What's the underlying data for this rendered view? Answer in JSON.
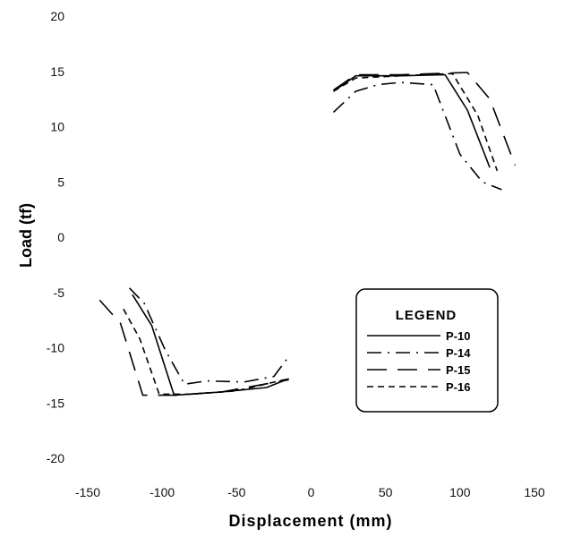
{
  "chart_data": {
    "type": "line",
    "title": "",
    "xlabel": "Displacement (mm)",
    "ylabel": "Load (tf)",
    "xlim": [
      -150,
      150
    ],
    "ylim": [
      -20,
      20
    ],
    "x_ticks": [
      "-150",
      "-100",
      "-50",
      "0",
      "50",
      "100",
      "150"
    ],
    "y_ticks": [
      "20",
      "15",
      "10",
      "5",
      "0",
      "-5",
      "-10",
      "-15",
      "-20"
    ],
    "grid": false,
    "legend": {
      "title": "LEGEND",
      "position": "right-center",
      "entries": [
        "P-10",
        "P-14",
        "P-15",
        "P-16"
      ]
    },
    "series": [
      {
        "name": "P-10",
        "style": "solid",
        "segments": [
          [
            [
              15,
              13.2
            ],
            [
              30,
              14.6
            ],
            [
              60,
              14.6
            ],
            [
              90,
              14.7
            ],
            [
              105,
              11.5
            ],
            [
              120,
              6.3
            ]
          ],
          [
            [
              -120,
              -5.2
            ],
            [
              -107,
              -8.0
            ],
            [
              -92,
              -14.3
            ],
            [
              -60,
              -14.0
            ],
            [
              -30,
              -13.6
            ],
            [
              -15,
              -12.8
            ]
          ]
        ]
      },
      {
        "name": "P-14",
        "style": "dashdot",
        "segments": [
          [
            [
              15,
              11.3
            ],
            [
              30,
              13.2
            ],
            [
              45,
              13.8
            ],
            [
              60,
              14.0
            ],
            [
              82,
              13.8
            ],
            [
              100,
              7.5
            ],
            [
              115,
              5.0
            ],
            [
              128,
              4.3
            ]
          ],
          [
            [
              -122,
              -4.6
            ],
            [
              -112,
              -6.0
            ],
            [
              -98,
              -10.2
            ],
            [
              -85,
              -13.3
            ],
            [
              -70,
              -13.0
            ],
            [
              -45,
              -13.1
            ],
            [
              -25,
              -12.6
            ],
            [
              -15,
              -10.8
            ]
          ]
        ]
      },
      {
        "name": "P-15",
        "style": "longdash",
        "segments": [
          [
            [
              15,
              13.3
            ],
            [
              30,
              14.7
            ],
            [
              60,
              14.7
            ],
            [
              105,
              14.9
            ],
            [
              120,
              12.5
            ],
            [
              137,
              6.5
            ]
          ],
          [
            [
              -142,
              -5.7
            ],
            [
              -128,
              -7.8
            ],
            [
              -113,
              -14.3
            ],
            [
              -92,
              -14.3
            ],
            [
              -60,
              -14.0
            ],
            [
              -15,
              -12.9
            ]
          ]
        ]
      },
      {
        "name": "P-16",
        "style": "shortdash",
        "segments": [
          [
            [
              15,
              13.2
            ],
            [
              30,
              14.4
            ],
            [
              60,
              14.6
            ],
            [
              95,
              14.8
            ],
            [
              112,
              11.0
            ],
            [
              125,
              6.0
            ]
          ],
          [
            [
              -126,
              -6.5
            ],
            [
              -115,
              -9.2
            ],
            [
              -102,
              -14.2
            ],
            [
              -80,
              -14.2
            ],
            [
              -50,
              -13.9
            ],
            [
              -15,
              -12.8
            ]
          ]
        ]
      }
    ]
  }
}
